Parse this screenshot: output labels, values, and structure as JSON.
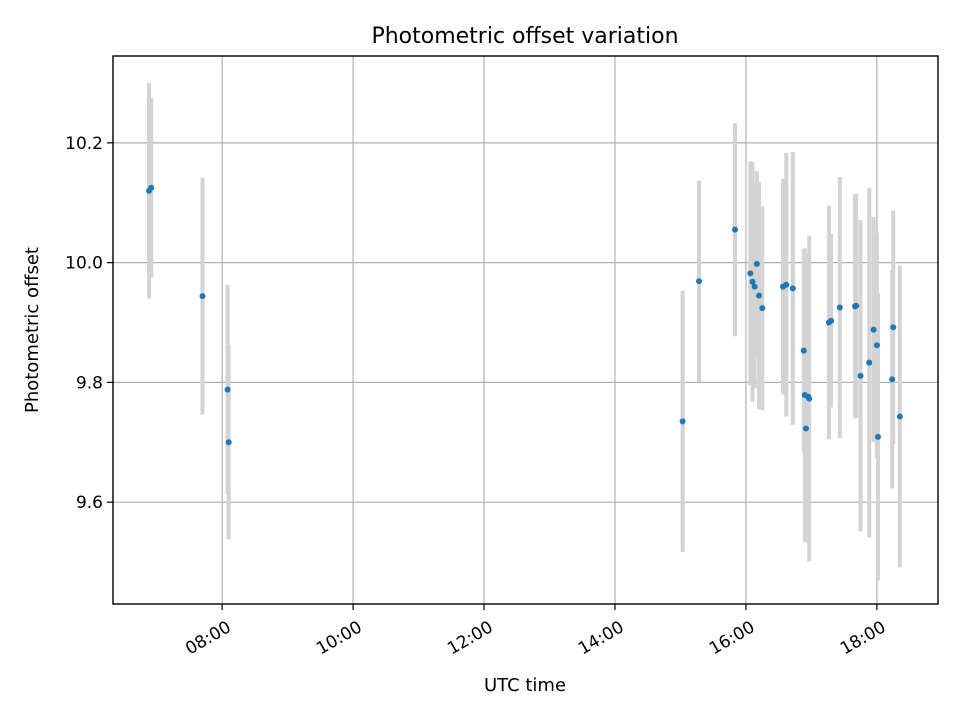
{
  "chart_data": {
    "type": "scatter",
    "title": "Photometric offset variation",
    "xlabel": "UTC time",
    "ylabel": "Photometric offset",
    "x_ticks": [
      "08:00",
      "10:00",
      "12:00",
      "14:00",
      "16:00",
      "18:00"
    ],
    "y_ticks": [
      "9.6",
      "9.8",
      "10.0",
      "10.2"
    ],
    "xlim": [
      "06:20",
      "18:56"
    ],
    "ylim": [
      9.43,
      10.345
    ],
    "grid": true,
    "colors": {
      "point": "#1f77b4",
      "errorbar": "#d3d3d3"
    },
    "points": [
      {
        "x": "06:53",
        "y": 10.12,
        "err": 0.18
      },
      {
        "x": "06:55",
        "y": 10.125,
        "err": 0.15
      },
      {
        "x": "07:42",
        "y": 9.944,
        "err": 0.198
      },
      {
        "x": "08:05",
        "y": 9.788,
        "err": 0.175
      },
      {
        "x": "08:06",
        "y": 9.7,
        "err": 0.162
      },
      {
        "x": "15:02",
        "y": 9.735,
        "err": 0.218
      },
      {
        "x": "15:17",
        "y": 9.969,
        "err": 0.168
      },
      {
        "x": "15:50",
        "y": 10.055,
        "err": 0.178
      },
      {
        "x": "16:04",
        "y": 9.982,
        "err": 0.187
      },
      {
        "x": "16:06",
        "y": 9.968,
        "err": 0.2
      },
      {
        "x": "16:08",
        "y": 9.96,
        "err": 0.17
      },
      {
        "x": "16:10",
        "y": 9.998,
        "err": 0.155
      },
      {
        "x": "16:12",
        "y": 9.945,
        "err": 0.19
      },
      {
        "x": "16:15",
        "y": 9.924,
        "err": 0.17
      },
      {
        "x": "16:34",
        "y": 9.96,
        "err": 0.18
      },
      {
        "x": "16:37",
        "y": 9.963,
        "err": 0.22
      },
      {
        "x": "16:43",
        "y": 9.957,
        "err": 0.228
      },
      {
        "x": "16:53",
        "y": 9.853,
        "err": 0.17
      },
      {
        "x": "16:54",
        "y": 9.779,
        "err": 0.245
      },
      {
        "x": "16:55",
        "y": 9.723,
        "err": 0.19
      },
      {
        "x": "16:57",
        "y": 9.776,
        "err": 0.24
      },
      {
        "x": "16:58",
        "y": 9.773,
        "err": 0.272
      },
      {
        "x": "17:16",
        "y": 9.9,
        "err": 0.195
      },
      {
        "x": "17:18",
        "y": 9.903,
        "err": 0.145
      },
      {
        "x": "17:26",
        "y": 9.925,
        "err": 0.218
      },
      {
        "x": "17:40",
        "y": 9.927,
        "err": 0.187
      },
      {
        "x": "17:41",
        "y": 9.928,
        "err": 0.187
      },
      {
        "x": "17:45",
        "y": 9.811,
        "err": 0.26
      },
      {
        "x": "17:53",
        "y": 9.833,
        "err": 0.292
      },
      {
        "x": "17:57",
        "y": 9.888,
        "err": 0.188
      },
      {
        "x": "18:00",
        "y": 9.862,
        "err": 0.188
      },
      {
        "x": "18:01",
        "y": 9.709,
        "err": 0.24
      },
      {
        "x": "18:14",
        "y": 9.805,
        "err": 0.182
      },
      {
        "x": "18:15",
        "y": 9.892,
        "err": 0.195
      },
      {
        "x": "18:21",
        "y": 9.743,
        "err": 0.252
      }
    ]
  }
}
